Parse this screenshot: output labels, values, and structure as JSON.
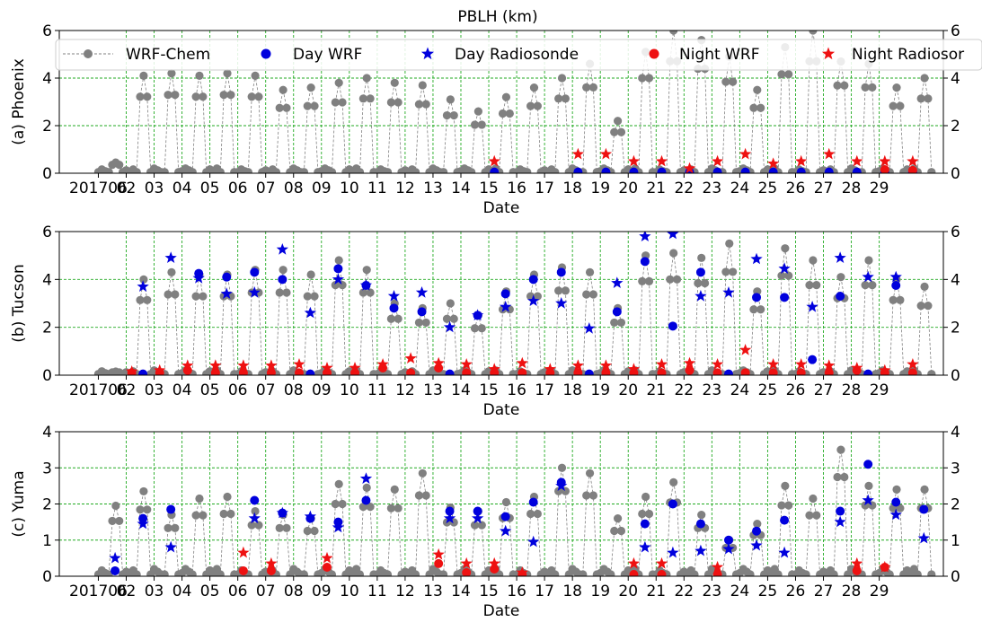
{
  "figure": {
    "title": "PBLH (km)"
  },
  "legend": {
    "items": [
      {
        "label": "WRF-Chem",
        "kind": "line-marker",
        "color": "#808080"
      },
      {
        "label": "Day WRF",
        "kind": "circle",
        "color": "#0000dd"
      },
      {
        "label": "Day Radiosonde",
        "kind": "star",
        "color": "#0000dd"
      },
      {
        "label": "Night WRF",
        "kind": "circle",
        "color": "#ee1111"
      },
      {
        "label": "Night Radiosor",
        "kind": "star",
        "color": "#ee1111"
      }
    ]
  },
  "colors": {
    "wrf_chem": "#808080",
    "day": "#0000dd",
    "night": "#ee1111",
    "grid": "#22aa22"
  },
  "chart_data": [
    {
      "type": "scatter",
      "panel": "(a) Phoenix",
      "ylabel": "(a) Phoenix",
      "xlabel": "Date",
      "ylim": [
        0,
        6
      ],
      "yticks": [
        "0",
        "2",
        "4",
        "6"
      ],
      "xticks": [
        "201706",
        "02",
        "03",
        "04",
        "05",
        "06",
        "07",
        "08",
        "09",
        "10",
        "11",
        "12",
        "13",
        "14",
        "15",
        "16",
        "17",
        "18",
        "19",
        "20",
        "21",
        "22",
        "23",
        "24",
        "25",
        "26",
        "27",
        "28",
        "29"
      ],
      "grid": true,
      "daily_peak_km": [
        0.45,
        4.1,
        4.2,
        4.1,
        4.2,
        4.1,
        3.5,
        3.6,
        3.8,
        4.0,
        3.8,
        3.7,
        3.1,
        2.6,
        3.2,
        3.6,
        4.0,
        4.6,
        2.2,
        5.1,
        6.0,
        5.6,
        4.9,
        3.5,
        5.3,
        6.0,
        4.7,
        4.6,
        3.6,
        4.0
      ],
      "day_wrf_km": [
        [
          14.2,
          0.05
        ],
        [
          17.2,
          0.05
        ],
        [
          18.2,
          0.05
        ],
        [
          19.2,
          0.05
        ],
        [
          20.2,
          0.05
        ],
        [
          21.2,
          0.05
        ],
        [
          22.2,
          0.05
        ],
        [
          23.2,
          0.05
        ],
        [
          24.2,
          0.05
        ],
        [
          25.2,
          0.05
        ],
        [
          26.2,
          0.05
        ],
        [
          27.2,
          0.05
        ],
        [
          28.2,
          0.05
        ],
        [
          29.2,
          0.05
        ]
      ],
      "night_wrf_km": [
        [
          28.2,
          0.15
        ],
        [
          29.2,
          0.12
        ]
      ],
      "night_radiosonde_km": [
        [
          14.2,
          0.5
        ],
        [
          17.2,
          0.8
        ],
        [
          18.2,
          0.8
        ],
        [
          19.2,
          0.5
        ],
        [
          20.2,
          0.5
        ],
        [
          21.2,
          0.2
        ],
        [
          22.2,
          0.5
        ],
        [
          23.2,
          0.8
        ],
        [
          24.2,
          0.4
        ],
        [
          25.2,
          0.5
        ],
        [
          26.2,
          0.8
        ],
        [
          27.2,
          0.5
        ],
        [
          28.2,
          0.5
        ],
        [
          29.2,
          0.5
        ]
      ]
    },
    {
      "type": "scatter",
      "panel": "(b) Tucson",
      "ylabel": "(b) Tucson",
      "xlabel": "Date",
      "ylim": [
        0,
        6
      ],
      "yticks": [
        "0",
        "2",
        "4",
        "6"
      ],
      "xticks": [
        "201706",
        "02",
        "03",
        "04",
        "05",
        "06",
        "07",
        "08",
        "09",
        "10",
        "11",
        "12",
        "13",
        "14",
        "15",
        "16",
        "17",
        "18",
        "19",
        "20",
        "21",
        "22",
        "23",
        "24",
        "25",
        "26",
        "27",
        "28",
        "29"
      ],
      "grid": true,
      "daily_peak_km": [
        0.15,
        4.0,
        4.3,
        4.2,
        4.2,
        4.4,
        4.4,
        4.2,
        4.8,
        4.4,
        3.0,
        2.8,
        3.0,
        2.5,
        3.5,
        4.2,
        4.5,
        4.3,
        2.8,
        5.0,
        5.1,
        4.9,
        5.5,
        3.5,
        5.3,
        4.8,
        4.1,
        4.8,
        4.0,
        3.7
      ],
      "day_wrf_km": [
        [
          1.6,
          0.05
        ],
        [
          3.6,
          4.25
        ],
        [
          4.6,
          4.1
        ],
        [
          5.6,
          4.3
        ],
        [
          6.6,
          4.0
        ],
        [
          7.6,
          0.05
        ],
        [
          8.6,
          4.45
        ],
        [
          9.6,
          3.75
        ],
        [
          10.6,
          2.8
        ],
        [
          11.6,
          2.65
        ],
        [
          12.6,
          0.05
        ],
        [
          13.6,
          2.5
        ],
        [
          14.6,
          3.4
        ],
        [
          15.6,
          4.0
        ],
        [
          16.6,
          4.3
        ],
        [
          17.6,
          0.05
        ],
        [
          18.6,
          2.65
        ],
        [
          19.6,
          4.75
        ],
        [
          20.6,
          2.05
        ],
        [
          21.6,
          4.3
        ],
        [
          22.6,
          0.05
        ],
        [
          23.6,
          3.25
        ],
        [
          24.6,
          3.25
        ],
        [
          25.6,
          0.65
        ],
        [
          26.6,
          3.3
        ],
        [
          27.6,
          0.05
        ],
        [
          28.6,
          3.75
        ]
      ],
      "day_radiosonde_km": [
        [
          1.6,
          3.7
        ],
        [
          2.6,
          4.9
        ],
        [
          3.6,
          4.05
        ],
        [
          4.6,
          3.4
        ],
        [
          5.6,
          3.45
        ],
        [
          6.6,
          5.25
        ],
        [
          7.6,
          2.6
        ],
        [
          8.6,
          4.0
        ],
        [
          9.6,
          3.75
        ],
        [
          10.6,
          3.3
        ],
        [
          11.6,
          3.45
        ],
        [
          12.6,
          2.0
        ],
        [
          13.6,
          2.5
        ],
        [
          14.6,
          2.85
        ],
        [
          15.6,
          3.1
        ],
        [
          16.6,
          3.0
        ],
        [
          17.6,
          1.95
        ],
        [
          18.6,
          3.85
        ],
        [
          19.6,
          5.8
        ],
        [
          20.6,
          5.9
        ],
        [
          21.6,
          3.3
        ],
        [
          22.6,
          3.45
        ],
        [
          23.6,
          4.85
        ],
        [
          24.6,
          4.45
        ],
        [
          25.6,
          2.85
        ],
        [
          26.6,
          4.9
        ],
        [
          27.6,
          4.1
        ],
        [
          28.6,
          4.1
        ]
      ],
      "night_wrf_km": [
        [
          1.2,
          0.1
        ],
        [
          2.2,
          0.1
        ],
        [
          3.2,
          0.2
        ],
        [
          4.2,
          0.1
        ],
        [
          5.2,
          0.1
        ],
        [
          6.2,
          0.1
        ],
        [
          7.2,
          0.1
        ],
        [
          8.2,
          0.1
        ],
        [
          9.2,
          0.1
        ],
        [
          10.2,
          0.3
        ],
        [
          11.2,
          0.1
        ],
        [
          12.2,
          0.3
        ],
        [
          13.2,
          0.1
        ],
        [
          14.2,
          0.1
        ],
        [
          15.2,
          0.1
        ],
        [
          16.2,
          0.1
        ],
        [
          17.2,
          0.1
        ],
        [
          18.2,
          0.1
        ],
        [
          19.2,
          0.1
        ],
        [
          20.2,
          0.1
        ],
        [
          21.2,
          0.2
        ],
        [
          22.2,
          0.1
        ],
        [
          23.2,
          0.1
        ],
        [
          24.2,
          0.1
        ],
        [
          25.2,
          0.1
        ],
        [
          26.2,
          0.1
        ],
        [
          27.2,
          0.2
        ],
        [
          28.2,
          0.1
        ],
        [
          29.2,
          0.1
        ]
      ],
      "night_radiosonde_km": [
        [
          1.2,
          0.15
        ],
        [
          2.2,
          0.2
        ],
        [
          3.2,
          0.4
        ],
        [
          4.2,
          0.4
        ],
        [
          5.2,
          0.4
        ],
        [
          6.2,
          0.4
        ],
        [
          7.2,
          0.45
        ],
        [
          8.2,
          0.3
        ],
        [
          9.2,
          0.3
        ],
        [
          10.2,
          0.45
        ],
        [
          11.2,
          0.7
        ],
        [
          12.2,
          0.5
        ],
        [
          13.2,
          0.45
        ],
        [
          14.2,
          0.25
        ],
        [
          15.2,
          0.5
        ],
        [
          16.2,
          0.25
        ],
        [
          17.2,
          0.4
        ],
        [
          18.2,
          0.4
        ],
        [
          19.2,
          0.25
        ],
        [
          20.2,
          0.45
        ],
        [
          21.2,
          0.5
        ],
        [
          22.2,
          0.45
        ],
        [
          23.2,
          1.05
        ],
        [
          24.2,
          0.45
        ],
        [
          25.2,
          0.45
        ],
        [
          26.2,
          0.4
        ],
        [
          27.2,
          0.3
        ],
        [
          28.2,
          0.2
        ],
        [
          29.2,
          0.45
        ]
      ]
    },
    {
      "type": "scatter",
      "panel": "(c) Yuma",
      "ylabel": "(c) Yuma",
      "xlabel": "Date",
      "ylim": [
        0,
        4
      ],
      "yticks": [
        "0",
        "1",
        "2",
        "3",
        "4"
      ],
      "xticks": [
        "201706",
        "02",
        "03",
        "04",
        "05",
        "06",
        "07",
        "08",
        "09",
        "10",
        "11",
        "12",
        "13",
        "14",
        "15",
        "16",
        "17",
        "18",
        "19",
        "20",
        "21",
        "22",
        "23",
        "24",
        "25",
        "26",
        "27",
        "28",
        "29"
      ],
      "grid": true,
      "daily_peak_km": [
        1.95,
        2.35,
        1.7,
        2.15,
        2.2,
        1.8,
        1.7,
        1.6,
        2.55,
        2.45,
        2.4,
        2.85,
        1.9,
        1.8,
        2.05,
        2.2,
        3.0,
        2.85,
        1.6,
        2.2,
        2.6,
        1.7,
        1.0,
        1.45,
        2.5,
        2.15,
        3.5,
        2.5,
        2.4,
        2.4
      ],
      "day_wrf_km": [
        [
          0.6,
          0.15
        ],
        [
          1.6,
          1.6
        ],
        [
          2.6,
          1.85
        ],
        [
          5.6,
          2.1
        ],
        [
          6.6,
          1.75
        ],
        [
          7.6,
          1.6
        ],
        [
          8.6,
          1.5
        ],
        [
          9.6,
          2.1
        ],
        [
          12.6,
          1.8
        ],
        [
          13.6,
          1.8
        ],
        [
          14.6,
          1.65
        ],
        [
          15.6,
          2.05
        ],
        [
          16.6,
          2.6
        ],
        [
          19.6,
          1.45
        ],
        [
          20.6,
          2.0
        ],
        [
          21.6,
          1.45
        ],
        [
          22.6,
          1.0
        ],
        [
          23.6,
          1.25
        ],
        [
          24.6,
          1.55
        ],
        [
          26.6,
          1.8
        ],
        [
          27.6,
          3.1
        ],
        [
          28.6,
          2.05
        ],
        [
          29.6,
          1.85
        ]
      ],
      "day_radiosonde_km": [
        [
          0.6,
          0.5
        ],
        [
          1.6,
          1.45
        ],
        [
          2.6,
          0.8
        ],
        [
          5.6,
          1.6
        ],
        [
          6.6,
          1.75
        ],
        [
          7.6,
          1.65
        ],
        [
          8.6,
          1.35
        ],
        [
          9.6,
          2.7
        ],
        [
          12.6,
          1.6
        ],
        [
          13.6,
          1.6
        ],
        [
          14.6,
          1.25
        ],
        [
          15.6,
          0.95
        ],
        [
          16.6,
          2.5
        ],
        [
          19.6,
          0.8
        ],
        [
          20.6,
          0.65
        ],
        [
          21.6,
          0.7
        ],
        [
          22.6,
          0.75
        ],
        [
          23.6,
          0.85
        ],
        [
          24.6,
          0.65
        ],
        [
          26.6,
          1.5
        ],
        [
          27.6,
          2.1
        ],
        [
          28.6,
          1.7
        ],
        [
          29.6,
          1.05
        ]
      ],
      "night_wrf_km": [
        [
          5.2,
          0.15
        ],
        [
          6.2,
          0.15
        ],
        [
          8.2,
          0.25
        ],
        [
          12.2,
          0.35
        ],
        [
          13.2,
          0.1
        ],
        [
          14.2,
          0.2
        ],
        [
          15.2,
          0.05
        ],
        [
          19.2,
          0.05
        ],
        [
          20.2,
          0.05
        ],
        [
          22.2,
          0.05
        ],
        [
          27.2,
          0.15
        ],
        [
          28.2,
          0.25
        ]
      ],
      "night_radiosonde_km": [
        [
          5.2,
          0.65
        ],
        [
          6.2,
          0.35
        ],
        [
          8.2,
          0.5
        ],
        [
          12.2,
          0.6
        ],
        [
          13.2,
          0.35
        ],
        [
          14.2,
          0.35
        ],
        [
          15.2,
          0.1
        ],
        [
          19.2,
          0.35
        ],
        [
          20.2,
          0.35
        ],
        [
          22.2,
          0.25
        ],
        [
          27.2,
          0.35
        ],
        [
          28.2,
          0.25
        ]
      ]
    }
  ]
}
